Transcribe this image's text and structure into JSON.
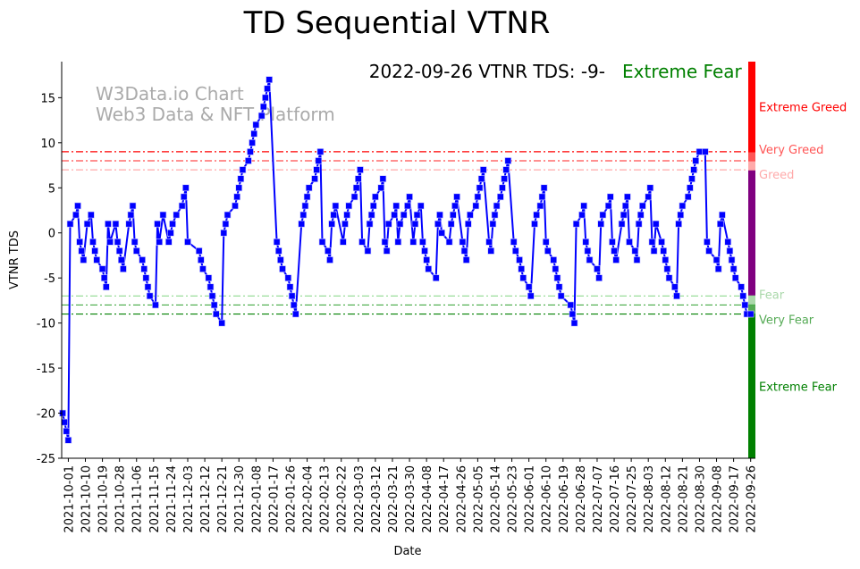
{
  "chart_data": {
    "type": "line",
    "title": "TD Sequential VTNR",
    "xlabel": "Date",
    "ylabel": "VTNR TDS",
    "x_unit": "days since 2021-10-01",
    "x_origin": "2021-10-01",
    "xlim": [
      -3.5,
      362.5
    ],
    "ylim": [
      -25,
      19
    ],
    "yticks": [
      15,
      10,
      5,
      0,
      -5,
      -10,
      -15,
      -20,
      -25
    ],
    "xticks": [
      0,
      9,
      18,
      27,
      36,
      45,
      54,
      63,
      72,
      81,
      90,
      99,
      108,
      117,
      126,
      135,
      144,
      153,
      162,
      171,
      180,
      189,
      198,
      207,
      216,
      225,
      234,
      243,
      252,
      261,
      270,
      279,
      288,
      297,
      306,
      315,
      324,
      333,
      342,
      351,
      360
    ],
    "xtick_labels": [
      "2021-10-01",
      "2021-10-10",
      "2021-10-19",
      "2021-10-28",
      "2021-11-06",
      "2021-11-15",
      "2021-11-24",
      "2021-12-03",
      "2021-12-12",
      "2021-12-21",
      "2021-12-30",
      "2022-01-08",
      "2022-01-17",
      "2022-01-26",
      "2022-02-04",
      "2022-02-13",
      "2022-02-22",
      "2022-03-03",
      "2022-03-12",
      "2022-03-21",
      "2022-03-30",
      "2022-04-08",
      "2022-04-17",
      "2022-04-26",
      "2022-05-05",
      "2022-05-14",
      "2022-05-23",
      "2022-06-01",
      "2022-06-10",
      "2022-06-19",
      "2022-06-28",
      "2022-07-07",
      "2022-07-16",
      "2022-07-25",
      "2022-08-03",
      "2022-08-12",
      "2022-08-21",
      "2022-08-30",
      "2022-09-08",
      "2022-09-17",
      "2022-09-26"
    ],
    "grid": false,
    "series": [
      {
        "name": "VTNR TDS",
        "color": "#0000ff",
        "points": [
          [
            -3,
            -20
          ],
          [
            -2,
            -21
          ],
          [
            -1,
            -22
          ],
          [
            0,
            -23
          ],
          [
            1,
            1
          ],
          [
            4,
            2
          ],
          [
            5,
            3
          ],
          [
            6,
            -1
          ],
          [
            7,
            -2
          ],
          [
            8,
            -3
          ],
          [
            10,
            1
          ],
          [
            12,
            2
          ],
          [
            13,
            -1
          ],
          [
            14,
            -2
          ],
          [
            15,
            -3
          ],
          [
            18,
            -4
          ],
          [
            19,
            -5
          ],
          [
            20,
            -6
          ],
          [
            21,
            1
          ],
          [
            22,
            -1
          ],
          [
            25,
            1
          ],
          [
            26,
            -1
          ],
          [
            27,
            -2
          ],
          [
            28,
            -3
          ],
          [
            29,
            -4
          ],
          [
            32,
            1
          ],
          [
            33,
            2
          ],
          [
            34,
            3
          ],
          [
            35,
            -1
          ],
          [
            36,
            -2
          ],
          [
            39,
            -3
          ],
          [
            40,
            -4
          ],
          [
            41,
            -5
          ],
          [
            42,
            -6
          ],
          [
            43,
            -7
          ],
          [
            46,
            -8
          ],
          [
            47,
            1
          ],
          [
            48,
            -1
          ],
          [
            50,
            2
          ],
          [
            53,
            -1
          ],
          [
            54,
            0
          ],
          [
            55,
            1
          ],
          [
            57,
            2
          ],
          [
            60,
            3
          ],
          [
            61,
            4
          ],
          [
            62,
            5
          ],
          [
            63,
            -1
          ],
          [
            69,
            -2
          ],
          [
            70,
            -3
          ],
          [
            71,
            -4
          ],
          [
            74,
            -5
          ],
          [
            75,
            -6
          ],
          [
            76,
            -7
          ],
          [
            77,
            -8
          ],
          [
            78,
            -9
          ],
          [
            81,
            -10
          ],
          [
            82,
            0
          ],
          [
            83,
            1
          ],
          [
            84,
            2
          ],
          [
            88,
            3
          ],
          [
            89,
            4
          ],
          [
            90,
            5
          ],
          [
            91,
            6
          ],
          [
            92,
            7
          ],
          [
            95,
            8
          ],
          [
            96,
            9
          ],
          [
            97,
            10
          ],
          [
            98,
            11
          ],
          [
            99,
            12
          ],
          [
            102,
            13
          ],
          [
            103,
            14
          ],
          [
            104,
            15
          ],
          [
            105,
            16
          ],
          [
            106,
            17
          ],
          [
            110,
            -1
          ],
          [
            111,
            -2
          ],
          [
            112,
            -3
          ],
          [
            113,
            -4
          ],
          [
            116,
            -5
          ],
          [
            117,
            -6
          ],
          [
            118,
            -7
          ],
          [
            119,
            -8
          ],
          [
            120,
            -9
          ],
          [
            123,
            1
          ],
          [
            124,
            2
          ],
          [
            125,
            3
          ],
          [
            126,
            4
          ],
          [
            127,
            5
          ],
          [
            130,
            6
          ],
          [
            131,
            7
          ],
          [
            132,
            8
          ],
          [
            133,
            9
          ],
          [
            134,
            -1
          ],
          [
            137,
            -2
          ],
          [
            138,
            -3
          ],
          [
            139,
            1
          ],
          [
            140,
            2
          ],
          [
            141,
            3
          ],
          [
            145,
            -1
          ],
          [
            146,
            1
          ],
          [
            147,
            2
          ],
          [
            148,
            3
          ],
          [
            151,
            4
          ],
          [
            152,
            5
          ],
          [
            153,
            6
          ],
          [
            154,
            7
          ],
          [
            155,
            -1
          ],
          [
            158,
            -2
          ],
          [
            159,
            1
          ],
          [
            160,
            2
          ],
          [
            161,
            3
          ],
          [
            162,
            4
          ],
          [
            165,
            5
          ],
          [
            166,
            6
          ],
          [
            167,
            -1
          ],
          [
            168,
            -2
          ],
          [
            169,
            1
          ],
          [
            172,
            2
          ],
          [
            173,
            3
          ],
          [
            174,
            -1
          ],
          [
            175,
            1
          ],
          [
            177,
            2
          ],
          [
            179,
            3
          ],
          [
            180,
            4
          ],
          [
            182,
            -1
          ],
          [
            183,
            1
          ],
          [
            184,
            2
          ],
          [
            186,
            3
          ],
          [
            187,
            -1
          ],
          [
            188,
            -2
          ],
          [
            189,
            -3
          ],
          [
            190,
            -4
          ],
          [
            194,
            -5
          ],
          [
            195,
            1
          ],
          [
            196,
            2
          ],
          [
            197,
            0
          ],
          [
            201,
            -1
          ],
          [
            202,
            1
          ],
          [
            203,
            2
          ],
          [
            204,
            3
          ],
          [
            205,
            4
          ],
          [
            208,
            -1
          ],
          [
            209,
            -2
          ],
          [
            210,
            -3
          ],
          [
            211,
            1
          ],
          [
            212,
            2
          ],
          [
            215,
            3
          ],
          [
            216,
            4
          ],
          [
            217,
            5
          ],
          [
            218,
            6
          ],
          [
            219,
            7
          ],
          [
            222,
            -1
          ],
          [
            223,
            -2
          ],
          [
            224,
            1
          ],
          [
            225,
            2
          ],
          [
            226,
            3
          ],
          [
            228,
            4
          ],
          [
            229,
            5
          ],
          [
            230,
            6
          ],
          [
            231,
            7
          ],
          [
            232,
            8
          ],
          [
            235,
            -1
          ],
          [
            236,
            -2
          ],
          [
            238,
            -3
          ],
          [
            239,
            -4
          ],
          [
            240,
            -5
          ],
          [
            243,
            -6
          ],
          [
            244,
            -7
          ],
          [
            246,
            1
          ],
          [
            247,
            2
          ],
          [
            249,
            3
          ],
          [
            250,
            4
          ],
          [
            251,
            5
          ],
          [
            252,
            -1
          ],
          [
            253,
            -2
          ],
          [
            256,
            -3
          ],
          [
            257,
            -4
          ],
          [
            258,
            -5
          ],
          [
            259,
            -6
          ],
          [
            260,
            -7
          ],
          [
            265,
            -8
          ],
          [
            266,
            -9
          ],
          [
            267,
            -10
          ],
          [
            268,
            1
          ],
          [
            271,
            2
          ],
          [
            272,
            3
          ],
          [
            273,
            -1
          ],
          [
            274,
            -2
          ],
          [
            275,
            -3
          ],
          [
            279,
            -4
          ],
          [
            280,
            -5
          ],
          [
            281,
            1
          ],
          [
            282,
            2
          ],
          [
            285,
            3
          ],
          [
            286,
            4
          ],
          [
            287,
            -1
          ],
          [
            288,
            -2
          ],
          [
            289,
            -3
          ],
          [
            292,
            1
          ],
          [
            293,
            2
          ],
          [
            294,
            3
          ],
          [
            295,
            4
          ],
          [
            296,
            -1
          ],
          [
            299,
            -2
          ],
          [
            300,
            -3
          ],
          [
            301,
            1
          ],
          [
            302,
            2
          ],
          [
            303,
            3
          ],
          [
            306,
            4
          ],
          [
            307,
            5
          ],
          [
            308,
            -1
          ],
          [
            309,
            -2
          ],
          [
            310,
            1
          ],
          [
            313,
            -1
          ],
          [
            314,
            -2
          ],
          [
            315,
            -3
          ],
          [
            316,
            -4
          ],
          [
            317,
            -5
          ],
          [
            320,
            -6
          ],
          [
            321,
            -7
          ],
          [
            322,
            1
          ],
          [
            323,
            2
          ],
          [
            324,
            3
          ],
          [
            327,
            4
          ],
          [
            328,
            5
          ],
          [
            329,
            6
          ],
          [
            330,
            7
          ],
          [
            331,
            8
          ],
          [
            333,
            9
          ],
          [
            336,
            9
          ],
          [
            337,
            -1
          ],
          [
            338,
            -2
          ],
          [
            342,
            -3
          ],
          [
            343,
            -4
          ],
          [
            344,
            1
          ],
          [
            345,
            2
          ],
          [
            348,
            -1
          ],
          [
            349,
            -2
          ],
          [
            350,
            -3
          ],
          [
            351,
            -4
          ],
          [
            352,
            -5
          ],
          [
            355,
            -6
          ],
          [
            356,
            -7
          ],
          [
            357,
            -8
          ],
          [
            358,
            -9
          ],
          [
            360,
            -9
          ]
        ]
      }
    ],
    "threshold_lines": [
      {
        "value": 9,
        "color": "#ff0000"
      },
      {
        "value": 8,
        "color": "#ff4d4d"
      },
      {
        "value": 7,
        "color": "#ffaaaa"
      },
      {
        "value": -7,
        "color": "#99dd99"
      },
      {
        "value": -8,
        "color": "#44aa44"
      },
      {
        "value": -9,
        "color": "#008000"
      }
    ],
    "zones": [
      {
        "label": "Extreme Greed",
        "from": 9,
        "to": 19,
        "color": "#ff0000",
        "label_value": 14
      },
      {
        "label": "Very Greed",
        "from": 8,
        "to": 9,
        "color": "#ff5555",
        "label_value": 8.5
      },
      {
        "label": "Greed",
        "from": 7,
        "to": 8,
        "color": "#ffaaaa",
        "label_value": 7.5
      },
      {
        "label": "",
        "from": -7,
        "to": 7,
        "color": "#800080"
      },
      {
        "label": "Fear",
        "from": -8,
        "to": -7,
        "color": "#aad8aa",
        "label_value": -7.5
      },
      {
        "label": "Very Fear",
        "from": -9,
        "to": -8,
        "color": "#55aa55",
        "label_value": -8.5
      },
      {
        "label": "Extreme Fear",
        "from": -25,
        "to": -9,
        "color": "#008000",
        "label_value": -17
      }
    ],
    "annotation": {
      "text": "2022-09-26 VTNR TDS: -9-",
      "status": "Extreme Fear",
      "status_color": "#008000"
    },
    "watermark": [
      "W3Data.io Chart",
      "Web3 Data & NFT Platform"
    ]
  }
}
